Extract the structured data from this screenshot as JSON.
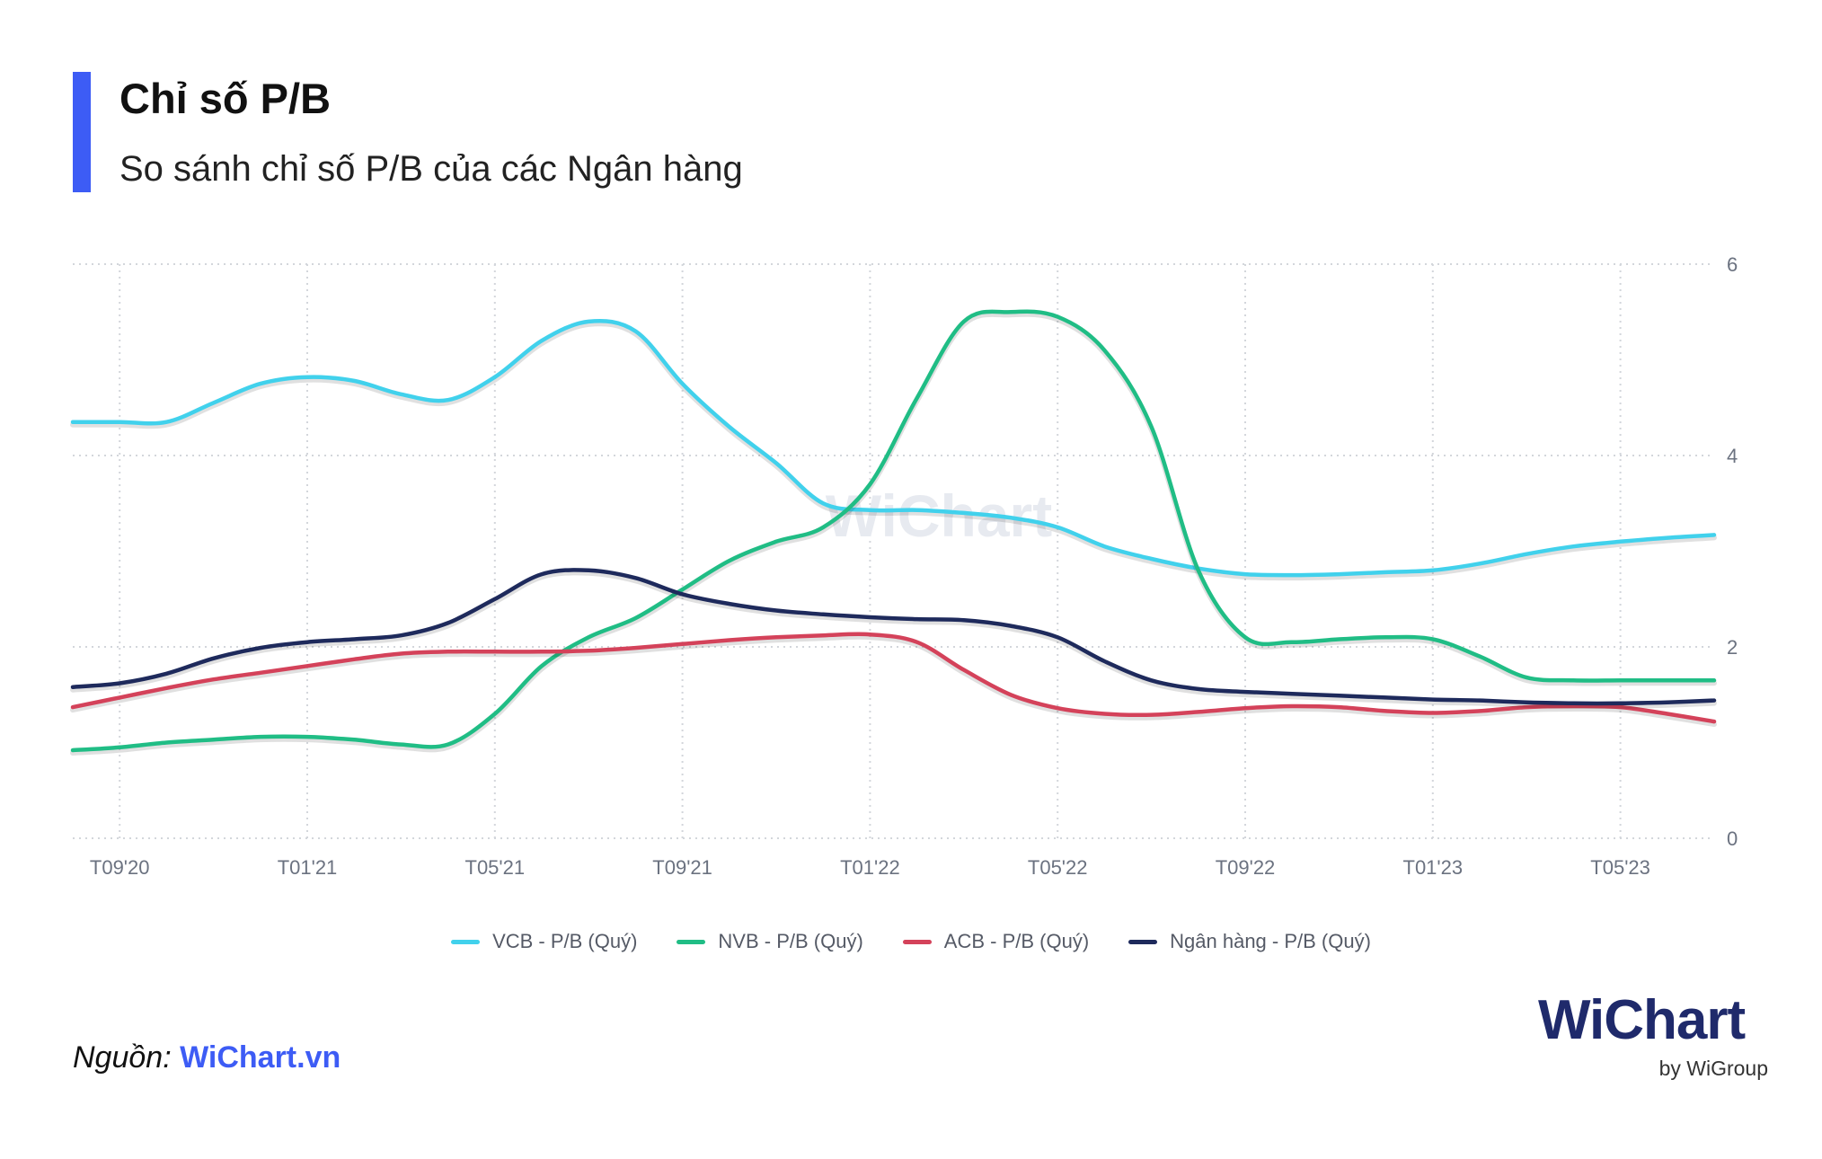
{
  "header": {
    "title": "Chỉ số P/B",
    "subtitle": "So sánh chỉ số P/B của các Ngân hàng"
  },
  "footer": {
    "source_label": "Nguồn: ",
    "source_link": "WiChart.vn",
    "brand": "WiChart",
    "brand_sub": "by WiGroup",
    "watermark": "WiChart"
  },
  "colors": {
    "accent": "#3d5cf5",
    "brand": "#1f2a6b"
  },
  "chart_data": {
    "type": "line",
    "title": "",
    "xlabel": "",
    "ylabel": "",
    "y_axis_position": "right",
    "ylim": [
      0,
      6
    ],
    "yticks": [
      0,
      2,
      4,
      6
    ],
    "grid": true,
    "legend_position": "bottom",
    "x_tick_labels": [
      "T09'20",
      "T01'21",
      "T05'21",
      "T09'21",
      "T01'22",
      "T05'22",
      "T09'22",
      "T01'23",
      "T05'23"
    ],
    "x": [
      "T08'20",
      "T09'20",
      "T10'20",
      "T11'20",
      "T12'20",
      "T01'21",
      "T02'21",
      "T03'21",
      "T04'21",
      "T05'21",
      "T06'21",
      "T07'21",
      "T08'21",
      "T09'21",
      "T10'21",
      "T11'21",
      "T12'21",
      "T01'22",
      "T02'22",
      "T03'22",
      "T04'22",
      "T05'22",
      "T06'22",
      "T07'22",
      "T08'22",
      "T09'22",
      "T10'22",
      "T11'22",
      "T12'22",
      "T01'23",
      "T02'23",
      "T03'23",
      "T04'23",
      "T05'23",
      "T06'23",
      "T07'23"
    ],
    "series": [
      {
        "name": "VCB - P/B (Quý)",
        "color": "#41d1ec",
        "values": [
          4.35,
          4.35,
          4.35,
          4.55,
          4.75,
          4.82,
          4.78,
          4.64,
          4.58,
          4.82,
          5.2,
          5.4,
          5.3,
          4.75,
          4.3,
          3.92,
          3.5,
          3.43,
          3.43,
          3.4,
          3.35,
          3.25,
          3.05,
          2.92,
          2.82,
          2.76,
          2.75,
          2.76,
          2.78,
          2.8,
          2.87,
          2.97,
          3.05,
          3.1,
          3.14,
          3.17
        ]
      },
      {
        "name": "NVB - P/B (Quý)",
        "color": "#20bd85",
        "values": [
          0.92,
          0.95,
          1.0,
          1.03,
          1.06,
          1.06,
          1.03,
          0.98,
          0.98,
          1.3,
          1.8,
          2.1,
          2.3,
          2.6,
          2.9,
          3.1,
          3.25,
          3.7,
          4.6,
          5.4,
          5.5,
          5.45,
          5.1,
          4.3,
          2.8,
          2.1,
          2.05,
          2.08,
          2.1,
          2.08,
          1.9,
          1.68,
          1.65,
          1.65,
          1.65,
          1.65
        ]
      },
      {
        "name": "ACB - P/B (Quý)",
        "color": "#d4425a",
        "values": [
          1.37,
          1.47,
          1.57,
          1.66,
          1.73,
          1.8,
          1.87,
          1.93,
          1.95,
          1.95,
          1.95,
          1.96,
          1.99,
          2.03,
          2.07,
          2.1,
          2.12,
          2.13,
          2.05,
          1.76,
          1.5,
          1.36,
          1.3,
          1.29,
          1.32,
          1.36,
          1.38,
          1.37,
          1.33,
          1.31,
          1.33,
          1.37,
          1.38,
          1.37,
          1.3,
          1.22
        ]
      },
      {
        "name": "Ngân hàng - P/B (Quý)",
        "color": "#1e2a5c",
        "values": [
          1.58,
          1.62,
          1.72,
          1.88,
          1.99,
          2.05,
          2.08,
          2.12,
          2.25,
          2.5,
          2.76,
          2.8,
          2.72,
          2.55,
          2.45,
          2.38,
          2.34,
          2.31,
          2.29,
          2.28,
          2.22,
          2.1,
          1.85,
          1.65,
          1.56,
          1.53,
          1.51,
          1.49,
          1.47,
          1.45,
          1.44,
          1.42,
          1.41,
          1.41,
          1.42,
          1.44
        ]
      }
    ]
  }
}
